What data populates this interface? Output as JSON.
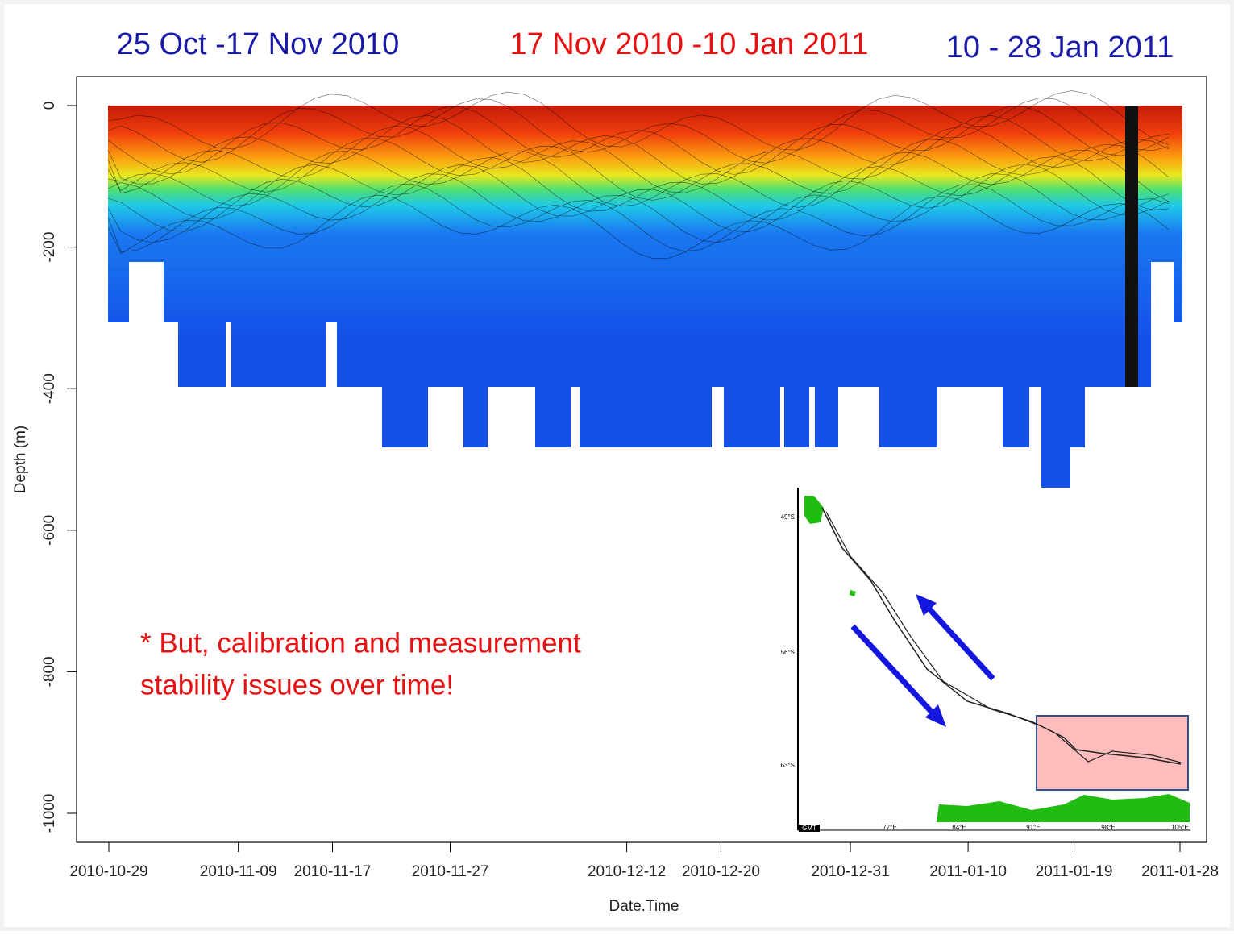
{
  "titles": [
    {
      "text": "25 Oct -17 Nov 2010",
      "color": "#1a1aa8"
    },
    {
      "text": "17 Nov 2010 -10 Jan 2011",
      "color": "#e81010"
    },
    {
      "text": "10 - 28 Jan 2011",
      "color": "#1a1aa8"
    }
  ],
  "chart_data": {
    "type": "contour",
    "xlabel": "Date.Time",
    "ylabel": "Depth (m)",
    "xlim": [
      "2010-10-29",
      "2011-01-28"
    ],
    "xticks": [
      "2010-10-29",
      "2010-11-09",
      "2010-11-17",
      "2010-11-27",
      "2010-12-12",
      "2010-12-20",
      "2010-12-31",
      "2011-01-10",
      "2011-01-19",
      "2011-01-28"
    ],
    "ylim": [
      -1041,
      41
    ],
    "yticks": [
      0,
      -200,
      -400,
      -600,
      -800,
      -1000
    ]
  },
  "annotation": [
    "* But, calibration and measurement",
    "stability issues over time!"
  ],
  "inset": {
    "lat_labels": [
      "49°S",
      "56°S",
      "63°S"
    ],
    "lon_labels": [
      "77°E",
      "84°E",
      "91°E",
      "98°E",
      "105°E"
    ],
    "stamp": "GMT"
  }
}
